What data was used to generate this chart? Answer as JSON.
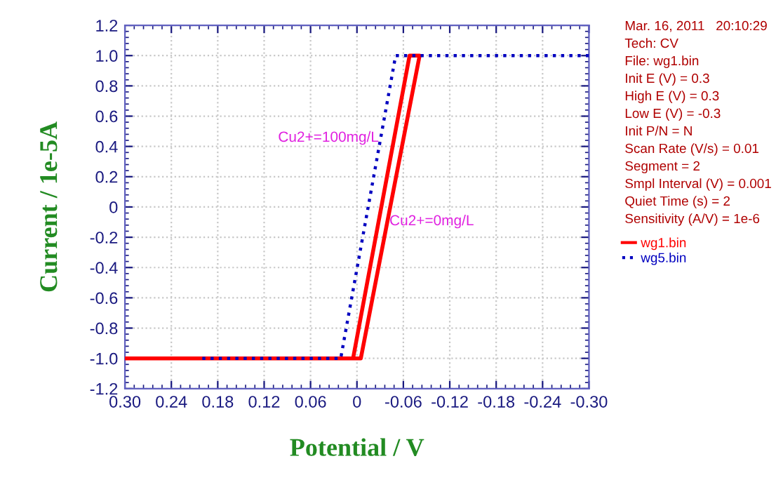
{
  "chart_data": {
    "type": "line",
    "xlabel": "Potential / V",
    "ylabel": "Current / 1e-5A",
    "xlim": [
      0.3,
      -0.3
    ],
    "xticks": [
      {
        "value": 0.3,
        "label": "0.30"
      },
      0.24,
      0.18,
      0.12,
      0.06,
      0,
      -0.06,
      -0.12,
      -0.18,
      -0.24,
      {
        "value": -0.3,
        "label": "-0.30"
      }
    ],
    "ylim": [
      -1.2,
      1.2
    ],
    "yticks": [
      -1.2,
      {
        "value": -1.0,
        "label": "-1.0"
      },
      -0.8,
      -0.6,
      -0.4,
      -0.2,
      0,
      0.2,
      0.4,
      0.6,
      0.8,
      {
        "value": 1.0,
        "label": "1.0"
      },
      1.2
    ],
    "grid": true,
    "legend": "right",
    "series": [
      {
        "name": "wg1.bin",
        "color": "#ff0000",
        "line_style": "solid",
        "marker": "none",
        "x": [
          0.3,
          0.005,
          -0.068,
          -0.081,
          -0.005,
          0.005
        ],
        "values": [
          -1.0,
          -1.0,
          1.0,
          1.0,
          -1.0,
          -1.0
        ]
      },
      {
        "name": "wg5.bin",
        "color": "#0000c0",
        "line_style": "dotted",
        "x": [
          0.2,
          0.021,
          -0.05,
          -0.3
        ],
        "values": [
          -1.0,
          -1.0,
          1.0,
          1.0
        ]
      }
    ],
    "annotations": [
      "Cu2+=100mg/L",
      "Cu2+=0mg/L",
      "Mar. 16, 2011   20:10:29",
      "Tech: CV",
      "File: wg1.bin",
      "Init E (V) = 0.3",
      "High E (V) = 0.3",
      "Low E (V) = -0.3",
      "Init P/N = N",
      "Scan Rate (V/s) = 0.01",
      "Segment = 2",
      "Smpl Interval (V) = 0.001",
      "Quiet Time (s) = 2",
      "Sensitivity (A/V) = 1e-6"
    ]
  }
}
